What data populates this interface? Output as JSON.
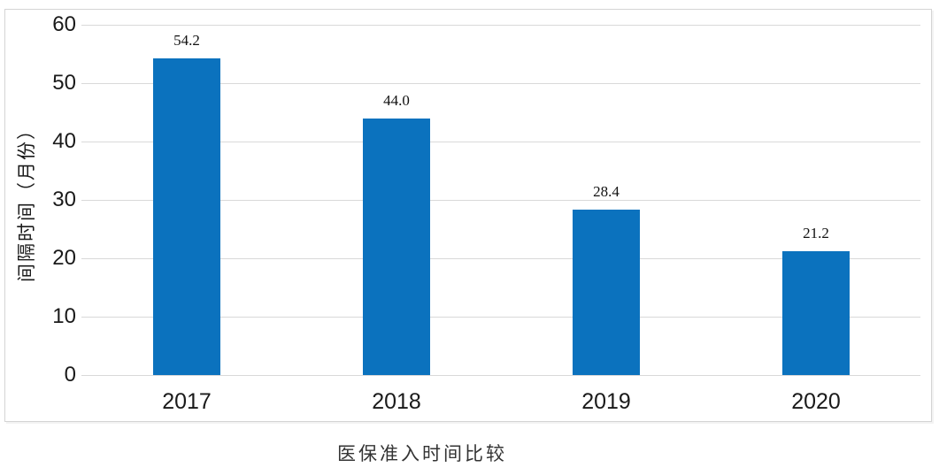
{
  "chart_data": {
    "type": "bar",
    "title": "医保准入时间比较",
    "ylabel": "间隔时间（月份）",
    "categories": [
      "2017",
      "2018",
      "2019",
      "2020"
    ],
    "values": [
      54.2,
      44.0,
      28.4,
      21.2
    ],
    "value_labels": [
      "54.2",
      "44.0",
      "28.4",
      "21.2"
    ],
    "yticks": [
      0,
      10,
      20,
      30,
      40,
      50,
      60
    ],
    "ytick_labels": [
      "0",
      "10",
      "20",
      "30",
      "40",
      "50",
      "60"
    ],
    "ylim": [
      0,
      60
    ],
    "grid": "horizontal-only",
    "legend": "none",
    "colors": {
      "bar": "#0b72be",
      "gridline": "#d9d9d9",
      "axis_text": "#1a1a1a",
      "value_text": "#111111",
      "frame_border": "#d4d4d4",
      "title_text": "#333333",
      "background": "#ffffff"
    }
  }
}
